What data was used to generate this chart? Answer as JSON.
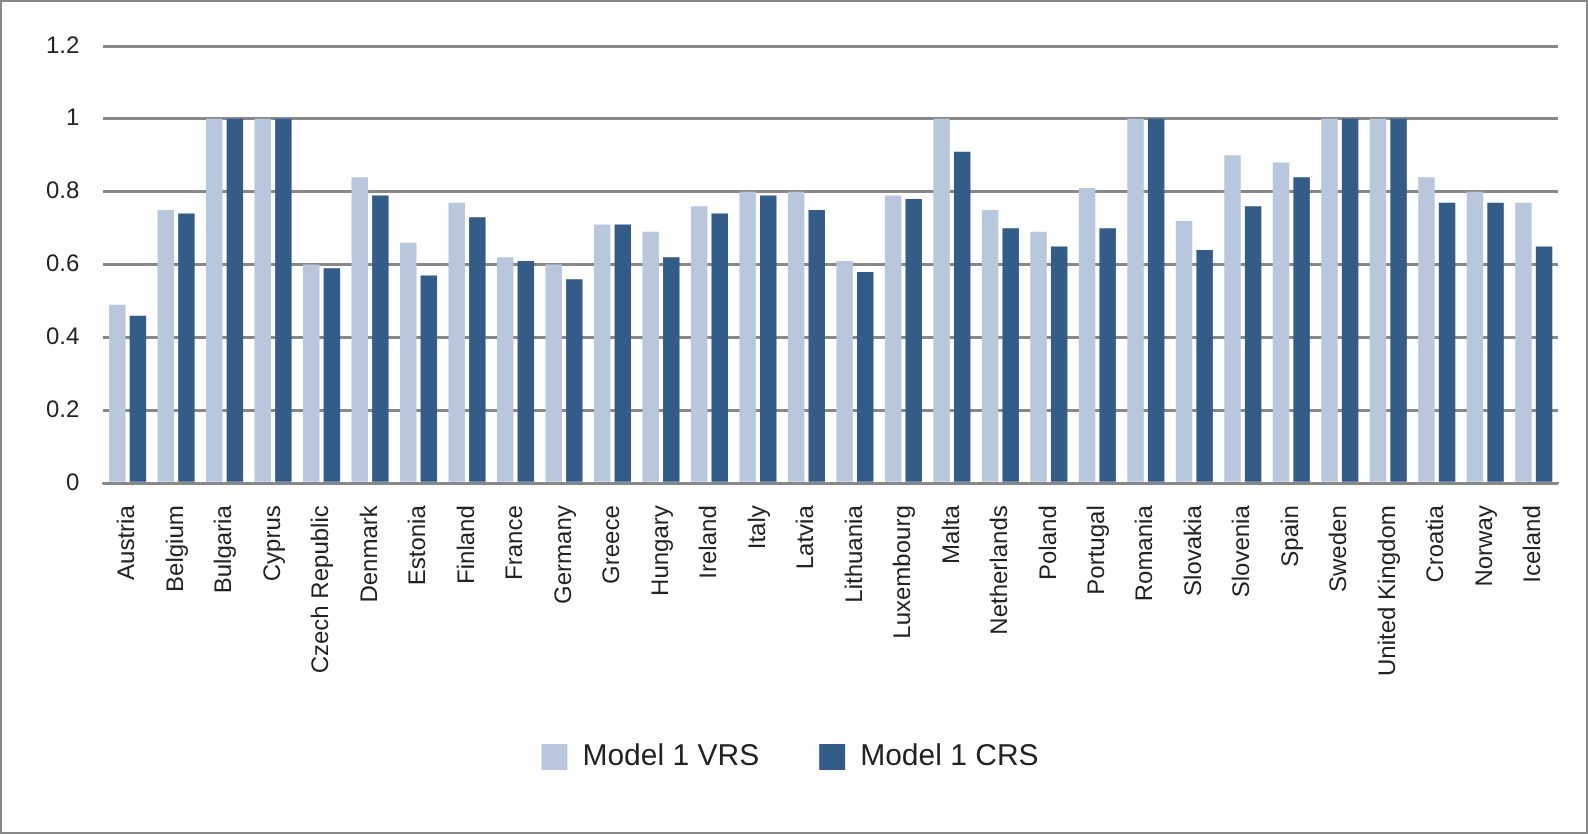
{
  "chart_data": {
    "type": "bar",
    "categories": [
      "Austria",
      "Belgium",
      "Bulgaria",
      "Cyprus",
      "Czech Republic",
      "Denmark",
      "Estonia",
      "Finland",
      "France",
      "Germany",
      "Greece",
      "Hungary",
      "Ireland",
      "Italy",
      "Latvia",
      "Lithuania",
      "Luxembourg",
      "Malta",
      "Netherlands",
      "Poland",
      "Portugal",
      "Romania",
      "Slovakia",
      "Slovenia",
      "Spain",
      "Sweden",
      "United Kingdom",
      "Croatia",
      "Norway",
      "Iceland"
    ],
    "series": [
      {
        "name": "Model 1 VRS",
        "color": "#b9c7dd",
        "values": [
          0.49,
          0.75,
          1,
          1,
          0.6,
          0.84,
          0.66,
          0.77,
          0.62,
          0.6,
          0.71,
          0.69,
          0.76,
          0.8,
          0.8,
          0.61,
          0.79,
          1,
          0.75,
          0.69,
          0.81,
          1,
          0.72,
          0.9,
          0.88,
          1,
          1,
          0.84,
          0.8,
          0.77
        ]
      },
      {
        "name": "Model 1 CRS",
        "color": "#335d88",
        "values": [
          0.46,
          0.74,
          1,
          1,
          0.59,
          0.79,
          0.57,
          0.73,
          0.61,
          0.56,
          0.71,
          0.62,
          0.74,
          0.79,
          0.75,
          0.58,
          0.78,
          0.91,
          0.7,
          0.65,
          0.7,
          1,
          0.64,
          0.76,
          0.84,
          1,
          1,
          0.77,
          0.77,
          0.65
        ]
      }
    ],
    "ylim": [
      0,
      1.2
    ],
    "yticks": [
      0,
      0.2,
      0.4,
      0.6,
      0.8,
      1,
      1.2
    ],
    "grid": "y",
    "legend": "bottom"
  }
}
